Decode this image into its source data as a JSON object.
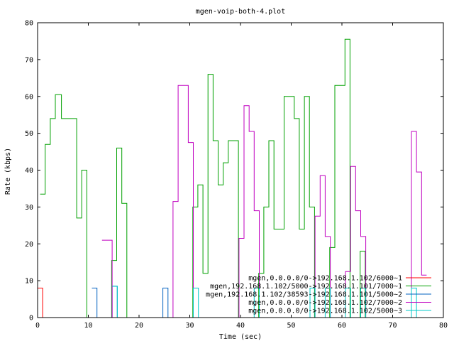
{
  "chart_data": {
    "type": "line",
    "title": "mgen-voip-both-4.plot",
    "xlabel": "Time (sec)",
    "ylabel": "Rate (kbps)",
    "xlim": [
      0,
      80
    ],
    "ylim": [
      0,
      80
    ],
    "xticks": [
      0,
      10,
      20,
      30,
      40,
      50,
      60,
      70,
      80
    ],
    "yticks": [
      0,
      10,
      20,
      30,
      40,
      50,
      60,
      70,
      80
    ],
    "grid": false,
    "legend_position": "bottom-right",
    "step": true,
    "series": [
      {
        "name": "mgen,0.0.0.0/0->192.168.1.102/6000~1",
        "color": "#ff0000",
        "points": [
          [
            0,
            8
          ],
          [
            1,
            8
          ],
          [
            1,
            0
          ]
        ]
      },
      {
        "name": "mgen,192.168.1.102/5000->192.168.1.101/7000~1",
        "color": "#00a000",
        "points": [
          [
            0.5,
            33.5
          ],
          [
            1.5,
            47
          ],
          [
            2.5,
            54
          ],
          [
            3.5,
            60.5
          ],
          [
            4.7,
            54
          ],
          [
            7.7,
            27
          ],
          [
            8.7,
            40
          ],
          [
            9.7,
            0
          ],
          [
            14.6,
            15.5
          ],
          [
            15.6,
            46
          ],
          [
            16.6,
            31
          ],
          [
            17.6,
            0
          ],
          [
            30.6,
            30
          ],
          [
            31.6,
            36
          ],
          [
            32.6,
            12
          ],
          [
            33.6,
            66
          ],
          [
            34.6,
            48
          ],
          [
            35.6,
            36
          ],
          [
            36.6,
            42
          ],
          [
            37.6,
            48
          ],
          [
            39.6,
            0
          ],
          [
            42.6,
            0
          ],
          [
            43.6,
            12
          ],
          [
            44.6,
            30
          ],
          [
            45.6,
            48
          ],
          [
            46.6,
            24
          ],
          [
            48.6,
            60
          ],
          [
            50.6,
            54
          ],
          [
            51.6,
            24
          ],
          [
            52.6,
            60
          ],
          [
            53.6,
            30
          ],
          [
            54.6,
            0
          ],
          [
            57.6,
            19
          ],
          [
            58.6,
            63
          ],
          [
            60.6,
            75.5
          ],
          [
            61.6,
            0
          ],
          [
            63.6,
            18
          ],
          [
            64.6,
            0
          ]
        ]
      },
      {
        "name": "mgen,192.168.1.102/38593->192.168.1.101/5000~2",
        "color": "#0060c0",
        "points": [
          [
            10.7,
            8
          ],
          [
            11.7,
            8
          ],
          [
            11.7,
            0
          ],
          [
            14.7,
            8.5
          ],
          [
            15.7,
            8.5
          ],
          [
            15.7,
            0
          ],
          [
            24.7,
            8
          ],
          [
            25.7,
            8
          ],
          [
            25.7,
            0
          ],
          [
            28.7,
            0
          ]
        ]
      },
      {
        "name": "mgen,0.0.0.0/0->192.168.1.102/7000~2",
        "color": "#c000c0",
        "points": [
          [
            12.7,
            21
          ],
          [
            14.7,
            0
          ],
          [
            26.7,
            31.5
          ],
          [
            27.7,
            63
          ],
          [
            29.7,
            47.5
          ],
          [
            30.7,
            0
          ],
          [
            39.7,
            21.5
          ],
          [
            40.7,
            57.5
          ],
          [
            41.7,
            50.5
          ],
          [
            42.7,
            29
          ],
          [
            43.7,
            0
          ],
          [
            54.7,
            27.5
          ],
          [
            55.7,
            38.5
          ],
          [
            56.7,
            22
          ],
          [
            57.7,
            0
          ],
          [
            60.7,
            12.5
          ],
          [
            61.7,
            41
          ],
          [
            62.7,
            29
          ],
          [
            63.7,
            22
          ],
          [
            64.7,
            0
          ],
          [
            73.7,
            50.5
          ],
          [
            74.7,
            39.5
          ],
          [
            75.7,
            11.5
          ],
          [
            76.7,
            11.5
          ]
        ]
      },
      {
        "name": "mgen,0.0.0.0/0->192.168.1.102/5000~3",
        "color": "#00c8c8",
        "points": [
          [
            14.7,
            8.5
          ],
          [
            15.7,
            8.5
          ],
          [
            15.7,
            0
          ],
          [
            30.7,
            8
          ],
          [
            31.7,
            8
          ],
          [
            31.7,
            0
          ],
          [
            42.7,
            8
          ],
          [
            43.7,
            8
          ],
          [
            43.7,
            0
          ],
          [
            53.7,
            8
          ],
          [
            54.7,
            8
          ],
          [
            54.7,
            0
          ],
          [
            56.7,
            8
          ],
          [
            57.7,
            8
          ],
          [
            57.7,
            0
          ],
          [
            60.7,
            8
          ],
          [
            61.7,
            8
          ],
          [
            61.7,
            0
          ],
          [
            63.7,
            8
          ],
          [
            64.7,
            8
          ],
          [
            64.7,
            0
          ],
          [
            73.7,
            8
          ],
          [
            74.7,
            8
          ],
          [
            74.7,
            0
          ]
        ]
      }
    ]
  }
}
